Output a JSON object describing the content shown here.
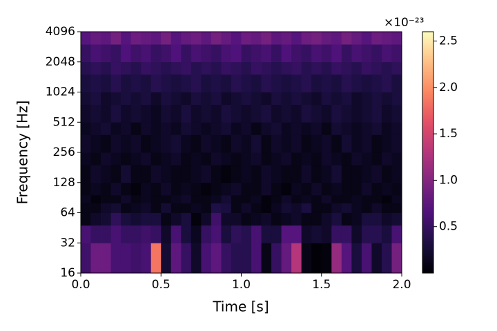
{
  "chart_data": {
    "type": "heatmap",
    "xlabel": "Time [s]",
    "ylabel": "Frequency [Hz]",
    "xlim": [
      0,
      2
    ],
    "xticks": [
      {
        "value": 0,
        "label": "0.0"
      },
      0.5,
      {
        "value": 1,
        "label": "1.0"
      },
      1.5,
      {
        "value": 2,
        "label": "2.0"
      }
    ],
    "ylim": [
      16,
      4096
    ],
    "y_log_base": 2,
    "yticks": [
      16,
      32,
      64,
      128,
      256,
      512,
      1024,
      2048,
      4096
    ],
    "y_edges": [
      16,
      32,
      48,
      64,
      80,
      96,
      128,
      192,
      256,
      384,
      512,
      768,
      1024,
      1536,
      2048,
      3072,
      4096
    ],
    "colormap": "magma",
    "colorbar": {
      "lim": [
        0,
        2.6
      ],
      "ticks": [
        0.5,
        {
          "value": 1,
          "label": "1.0"
        },
        1.5,
        {
          "value": 2,
          "label": "2.0"
        },
        2.5
      ],
      "offset_label": "×10⁻²³"
    },
    "values": [
      [
        0.55,
        0.85,
        0.85,
        0.6,
        0.6,
        0.55,
        0.6,
        1.85,
        0.25,
        0.75,
        0.5,
        0.2,
        0.6,
        0.75,
        0.5,
        0.4,
        0.4,
        0.6,
        0.1,
        0.5,
        0.8,
        1.3,
        0.1,
        0.02,
        0.05,
        1.1,
        0.7,
        0.3,
        0.6,
        0.2,
        0.4,
        0.9
      ],
      [
        0.6,
        0.5,
        0.5,
        0.6,
        0.5,
        0.5,
        0.55,
        0.5,
        0.2,
        0.6,
        0.3,
        0.15,
        0.5,
        0.6,
        0.3,
        0.45,
        0.4,
        0.6,
        0.3,
        0.3,
        0.7,
        0.7,
        0.2,
        0.25,
        0.2,
        0.5,
        0.5,
        0.2,
        0.4,
        0.4,
        0.3,
        0.6
      ],
      [
        0.1,
        0.2,
        0.25,
        0.45,
        0.3,
        0.25,
        0.3,
        0.3,
        0.1,
        0.2,
        0.3,
        0.05,
        0.2,
        0.55,
        0.2,
        0.2,
        0.1,
        0.15,
        0.2,
        0.1,
        0.15,
        0.2,
        0.1,
        0.1,
        0.2,
        0.3,
        0.1,
        0.15,
        0.3,
        0.3,
        0.2,
        0.25
      ],
      [
        0.1,
        0.1,
        0.2,
        0.25,
        0.1,
        0.15,
        0.2,
        0.1,
        0.25,
        0.1,
        0.1,
        0.15,
        0.1,
        0.35,
        0.3,
        0.1,
        0.2,
        0.1,
        0.05,
        0.15,
        0.25,
        0.2,
        0.3,
        0.1,
        0.1,
        0.2,
        0.25,
        0.15,
        0.1,
        0.2,
        0.1,
        0.1
      ],
      [
        0.15,
        0.05,
        0.1,
        0.1,
        0.2,
        0.1,
        0.15,
        0.1,
        0.1,
        0.15,
        0.2,
        0.1,
        0.1,
        0.15,
        0.25,
        0.1,
        0.1,
        0.15,
        0.05,
        0.1,
        0.2,
        0.1,
        0.15,
        0.1,
        0.2,
        0.1,
        0.1,
        0.15,
        0.1,
        0.1,
        0.05,
        0.15
      ],
      [
        0.1,
        0.15,
        0.1,
        0.2,
        0.1,
        0.05,
        0.15,
        0.1,
        0.2,
        0.1,
        0.15,
        0.1,
        0.05,
        0.1,
        0.15,
        0.2,
        0.1,
        0.1,
        0.2,
        0.1,
        0.05,
        0.15,
        0.1,
        0.2,
        0.1,
        0.15,
        0.1,
        0.1,
        0.2,
        0.1,
        0.15,
        0.1
      ],
      [
        0.1,
        0.2,
        0.15,
        0.1,
        0.25,
        0.1,
        0.1,
        0.2,
        0.15,
        0.1,
        0.1,
        0.15,
        0.2,
        0.1,
        0.05,
        0.1,
        0.15,
        0.1,
        0.2,
        0.15,
        0.1,
        0.1,
        0.2,
        0.1,
        0.15,
        0.25,
        0.1,
        0.1,
        0.15,
        0.2,
        0.1,
        0.15
      ],
      [
        0.15,
        0.1,
        0.2,
        0.15,
        0.1,
        0.15,
        0.2,
        0.1,
        0.15,
        0.2,
        0.1,
        0.15,
        0.1,
        0.2,
        0.15,
        0.1,
        0.15,
        0.2,
        0.1,
        0.15,
        0.2,
        0.1,
        0.15,
        0.1,
        0.2,
        0.15,
        0.1,
        0.2,
        0.15,
        0.1,
        0.2,
        0.15
      ],
      [
        0.2,
        0.15,
        0.1,
        0.2,
        0.15,
        0.2,
        0.1,
        0.15,
        0.2,
        0.25,
        0.15,
        0.1,
        0.2,
        0.15,
        0.1,
        0.2,
        0.15,
        0.25,
        0.1,
        0.2,
        0.15,
        0.2,
        0.1,
        0.15,
        0.2,
        0.1,
        0.25,
        0.15,
        0.2,
        0.1,
        0.15,
        0.2
      ],
      [
        0.15,
        0.2,
        0.25,
        0.15,
        0.2,
        0.1,
        0.2,
        0.15,
        0.2,
        0.15,
        0.25,
        0.2,
        0.15,
        0.2,
        0.25,
        0.15,
        0.2,
        0.1,
        0.2,
        0.25,
        0.15,
        0.2,
        0.15,
        0.2,
        0.1,
        0.25,
        0.2,
        0.15,
        0.2,
        0.25,
        0.15,
        0.2
      ],
      [
        0.2,
        0.25,
        0.2,
        0.3,
        0.2,
        0.25,
        0.2,
        0.15,
        0.25,
        0.2,
        0.3,
        0.2,
        0.25,
        0.2,
        0.3,
        0.25,
        0.2,
        0.25,
        0.3,
        0.2,
        0.25,
        0.2,
        0.3,
        0.25,
        0.2,
        0.3,
        0.25,
        0.2,
        0.25,
        0.3,
        0.2,
        0.25
      ],
      [
        0.25,
        0.3,
        0.2,
        0.25,
        0.3,
        0.25,
        0.3,
        0.2,
        0.3,
        0.25,
        0.2,
        0.3,
        0.25,
        0.3,
        0.2,
        0.25,
        0.3,
        0.25,
        0.2,
        0.3,
        0.25,
        0.3,
        0.25,
        0.2,
        0.3,
        0.25,
        0.3,
        0.2,
        0.25,
        0.3,
        0.25,
        0.3
      ],
      [
        0.3,
        0.35,
        0.3,
        0.4,
        0.3,
        0.35,
        0.3,
        0.4,
        0.35,
        0.3,
        0.35,
        0.4,
        0.3,
        0.35,
        0.3,
        0.4,
        0.35,
        0.3,
        0.4,
        0.35,
        0.3,
        0.35,
        0.4,
        0.3,
        0.35,
        0.3,
        0.4,
        0.35,
        0.3,
        0.35,
        0.4,
        0.3
      ],
      [
        0.4,
        0.45,
        0.4,
        0.5,
        0.45,
        0.4,
        0.5,
        0.45,
        0.4,
        0.45,
        0.5,
        0.4,
        0.45,
        0.4,
        0.5,
        0.45,
        0.4,
        0.5,
        0.45,
        0.4,
        0.45,
        0.5,
        0.4,
        0.45,
        0.4,
        0.5,
        0.45,
        0.4,
        0.5,
        0.45,
        0.4,
        0.45
      ],
      [
        0.5,
        0.6,
        0.55,
        0.5,
        0.65,
        0.55,
        0.6,
        0.5,
        0.55,
        0.65,
        0.5,
        0.6,
        0.55,
        0.5,
        0.6,
        0.65,
        0.5,
        0.55,
        0.6,
        0.5,
        0.65,
        0.55,
        0.5,
        0.6,
        0.55,
        0.65,
        0.5,
        0.6,
        0.55,
        0.5,
        0.6,
        0.55
      ],
      [
        0.7,
        0.8,
        0.75,
        0.9,
        0.7,
        0.85,
        0.8,
        0.75,
        0.9,
        0.7,
        0.8,
        0.85,
        0.75,
        0.9,
        0.8,
        0.7,
        0.85,
        0.8,
        0.9,
        0.75,
        0.8,
        0.7,
        0.85,
        0.9,
        0.8,
        0.75,
        0.9,
        0.8,
        0.7,
        0.85,
        0.8,
        0.75
      ]
    ]
  }
}
